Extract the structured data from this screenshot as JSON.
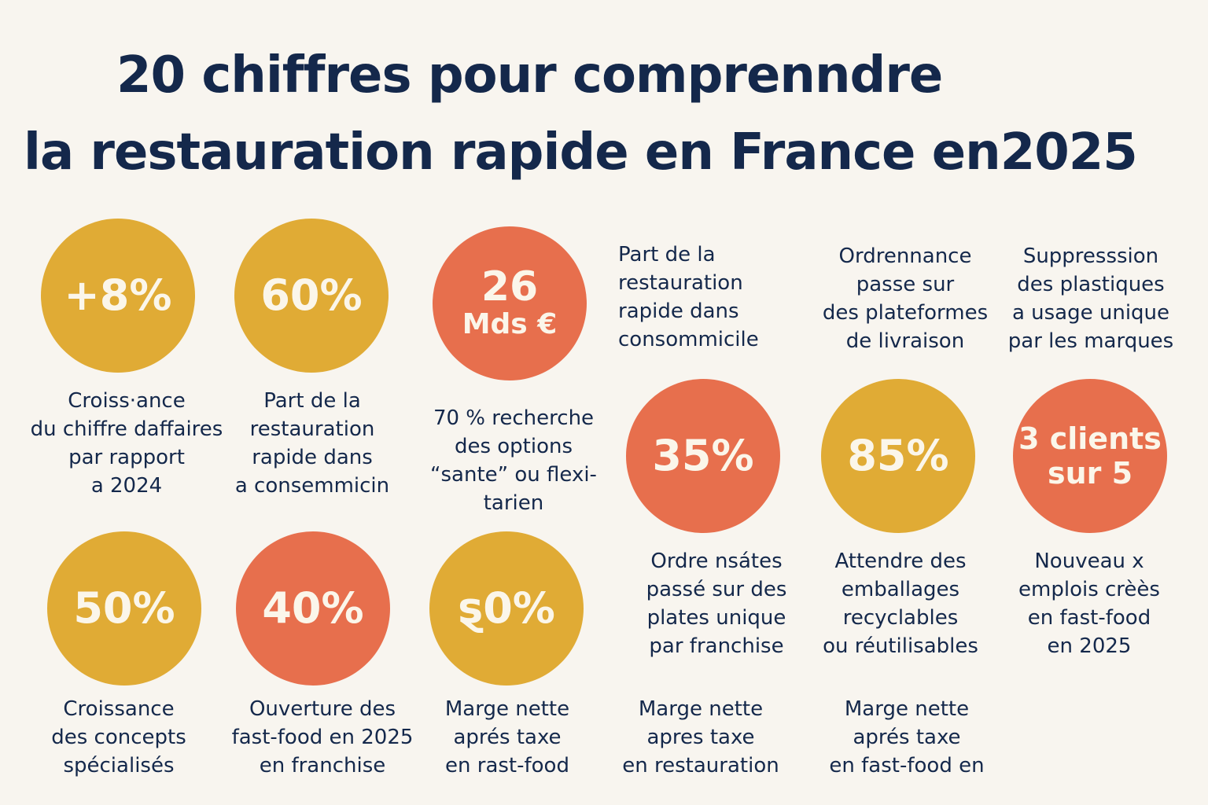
{
  "title": {
    "line1": "20 chiffres pour comprenndre",
    "line2": "la restauration rapide en France en2025"
  },
  "colors": {
    "navy": "#14284b",
    "gold": "#e0ab35",
    "coral": "#e76f4d",
    "background": "#f8f5ef"
  },
  "row1": {
    "c1": {
      "value": "+8%",
      "lines": [
        "Croiss·ance",
        "du chiffre daffaires",
        "par rapport",
        "a 2024"
      ]
    },
    "c2": {
      "value": "60%",
      "lines": [
        "Part de la",
        "restauration",
        "rapide dans",
        "a consemmicin"
      ]
    },
    "c3": {
      "value_line1": "26",
      "value_line2": "Mds €",
      "lines": [
        "70 % recherche",
        "des options",
        "“sante” ou flexi-",
        "tarien"
      ]
    },
    "t4": {
      "lines": [
        "Part de la",
        "restauration",
        "rapide dans",
        "consommicile"
      ]
    },
    "t5": {
      "lines": [
        "Ordrennance",
        "passe sur",
        "des plateformes",
        "de livraison"
      ]
    },
    "t6": {
      "lines": [
        "Suppresssion",
        "des plastiques",
        "a usage unique",
        "par les marques"
      ]
    }
  },
  "row2": {
    "c4": {
      "value": "35%",
      "lines": [
        "Ordre nsátes",
        "passé sur des",
        "plates unique",
        "par franchise"
      ]
    },
    "c5": {
      "value": "85%",
      "lines": [
        "Attendre des",
        "emballages",
        "recyclables",
        "ou réutilisables"
      ]
    },
    "c6": {
      "value_line1": "3 clients",
      "value_line2": "sur 5",
      "lines": [
        "Nouveau x",
        "emplois crèès",
        "en fast-food",
        "en 2025"
      ]
    }
  },
  "row3": {
    "c7": {
      "value": "50%",
      "lines": [
        "Croissance",
        "des concepts",
        "spécialisés"
      ]
    },
    "c8": {
      "value": "40%",
      "lines": [
        "Ouverture des",
        "fast-food en 2025",
        "en franchise"
      ]
    },
    "c9": {
      "value": "ȿ0%",
      "lines": [
        "Marge nette",
        "aprés taxe",
        "en rast-food"
      ]
    },
    "t10": {
      "lines": [
        "Marge nette",
        "apres taxe",
        "en restauration"
      ]
    },
    "t11": {
      "lines": [
        "Marge nette",
        "aprés taxe",
        "en fast-food en"
      ]
    }
  }
}
